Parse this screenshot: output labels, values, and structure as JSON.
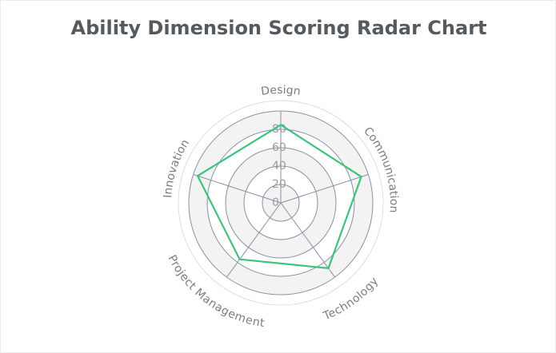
{
  "chart_data": {
    "type": "radar",
    "title": "Ability Dimension Scoring Radar Chart",
    "indicators": [
      "Design",
      "Communication",
      "Technology",
      "Project Management",
      "Innovation"
    ],
    "max": 100,
    "ticks": [
      "0",
      "20",
      "40",
      "60",
      "80"
    ],
    "series": [
      {
        "values": [
          85,
          92,
          88,
          76,
          95
        ]
      }
    ],
    "colors": {
      "series_line": "#3fc27e",
      "grid_line": "#8890a4",
      "band_fill": "#f3f3f3",
      "outer_ring": "#dedede"
    }
  }
}
